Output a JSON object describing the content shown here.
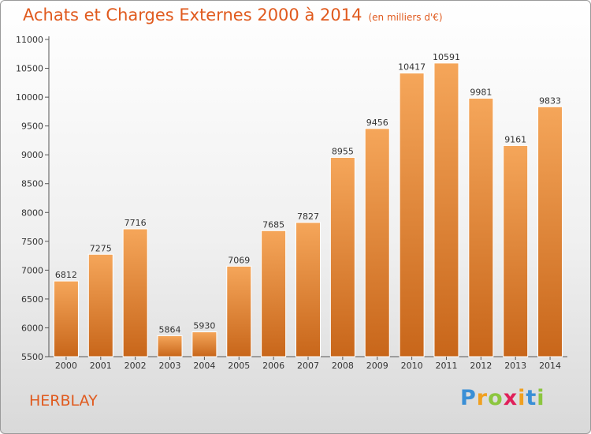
{
  "title": "Achats et Charges Externes 2000 à 2014",
  "subtitle": "(en milliers d'€)",
  "commune": "HERBLAY",
  "logo": {
    "letters": [
      "P",
      "r",
      "o",
      "x",
      "i",
      "t",
      "i"
    ],
    "colors": [
      "#3a8fd6",
      "#f0a020",
      "#8cc63f",
      "#e0205a",
      "#f0a020",
      "#3a8fd6",
      "#8cc63f"
    ]
  },
  "colors": {
    "bar_top": "#f5a65a",
    "bar_bottom": "#c8661a",
    "accent": "#e05a1e"
  },
  "chart_data": {
    "type": "bar",
    "categories": [
      "2000",
      "2001",
      "2002",
      "2003",
      "2004",
      "2005",
      "2006",
      "2007",
      "2008",
      "2009",
      "2010",
      "2011",
      "2012",
      "2013",
      "2014"
    ],
    "values": [
      6812,
      7275,
      7716,
      5864,
      5930,
      7069,
      7685,
      7827,
      8955,
      9456,
      10417,
      10591,
      9981,
      9161,
      9833
    ],
    "title": "Achats et Charges Externes 2000 à 2014",
    "ylim": [
      5500,
      11000
    ],
    "yticks": [
      5500,
      6000,
      6500,
      7000,
      7500,
      8000,
      8500,
      9000,
      9500,
      10000,
      10500,
      11000
    ],
    "grid": false,
    "data_labels": true
  }
}
